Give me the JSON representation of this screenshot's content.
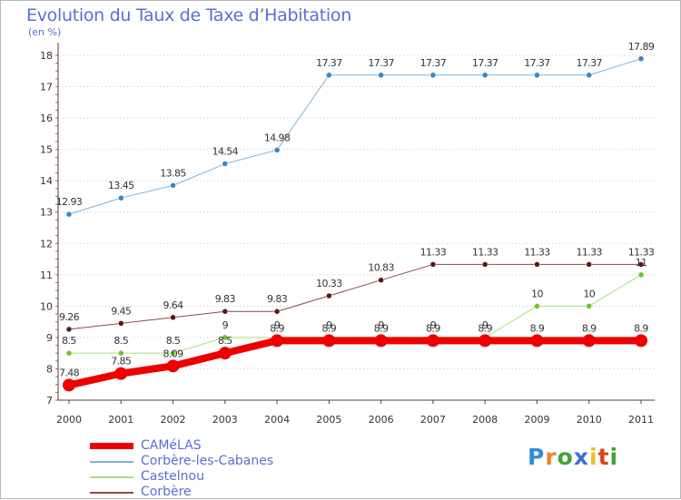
{
  "title": "Evolution du Taux de Taxe d’Habitation",
  "subtitle": "(en %)",
  "logo": {
    "text": "Proxiti",
    "colors": [
      "#2c8fd6",
      "#e8862a",
      "#3aa635",
      "#3d6fd8",
      "#e6c420",
      "#d6421f",
      "#3aa635"
    ]
  },
  "chart_data": {
    "type": "line",
    "title": "Evolution du Taux de Taxe d’Habitation",
    "ylabel": "(en %)",
    "xlabel": "",
    "x": [
      "2000",
      "2001",
      "2002",
      "2003",
      "2004",
      "2005",
      "2006",
      "2007",
      "2008",
      "2009",
      "2010",
      "2011"
    ],
    "ylim": [
      7,
      18
    ],
    "yticks": [
      "7",
      "8",
      "9",
      "10",
      "11",
      "12",
      "13",
      "14",
      "15",
      "16",
      "17",
      "18"
    ],
    "grid": "horizontal dotted",
    "legend_position": "bottom-left",
    "series": [
      {
        "name": "Corbère-les-Cabanes",
        "color": "#7fb3d8",
        "point_color": "#3c85c2",
        "width": 1,
        "values": [
          12.93,
          13.45,
          13.85,
          14.54,
          14.98,
          17.37,
          17.37,
          17.37,
          17.37,
          17.37,
          17.37,
          17.89
        ],
        "labels": [
          "12.93",
          "13.45",
          "13.85",
          "14.54",
          "14.98",
          "17.37",
          "17.37",
          "17.37",
          "17.37",
          "17.37",
          "17.37",
          "17.89"
        ]
      },
      {
        "name": "Corbère",
        "color": "#8b4a4a",
        "point_color": "#5a1a1a",
        "width": 1,
        "values": [
          9.26,
          9.45,
          9.64,
          9.83,
          9.83,
          10.33,
          10.83,
          11.33,
          11.33,
          11.33,
          11.33,
          11.33
        ],
        "labels": [
          "9.26",
          "9.45",
          "9.64",
          "9.83",
          "9.83",
          "10.33",
          "10.83",
          "11.33",
          "11.33",
          "11.33",
          "11.33",
          "11.33"
        ]
      },
      {
        "name": "Castelnou",
        "color": "#a8e07a",
        "point_color": "#6cc42a",
        "width": 1,
        "values": [
          8.5,
          8.5,
          8.5,
          9,
          9,
          9,
          9,
          9,
          9,
          10,
          10,
          11
        ],
        "labels": [
          "8.5",
          "8.5",
          "8.5",
          "9",
          "9",
          "9",
          "9",
          "9",
          "9",
          "10",
          "10",
          "11"
        ]
      },
      {
        "name": "CAMéLAS",
        "color": "#ee0000",
        "point_color": "#ee0000",
        "width": 8,
        "values": [
          7.48,
          7.85,
          8.09,
          8.5,
          8.9,
          8.9,
          8.9,
          8.9,
          8.9,
          8.9,
          8.9,
          8.9
        ],
        "labels": [
          "7.48",
          "7.85",
          "8.09",
          "8.5",
          "8.9",
          "8.9",
          "8.9",
          "8.9",
          "8.9",
          "8.9",
          "8.9",
          "8.9"
        ]
      }
    ],
    "legend_order": [
      "CAMéLAS",
      "Corbère-les-Cabanes",
      "Castelnou",
      "Corbère"
    ]
  }
}
